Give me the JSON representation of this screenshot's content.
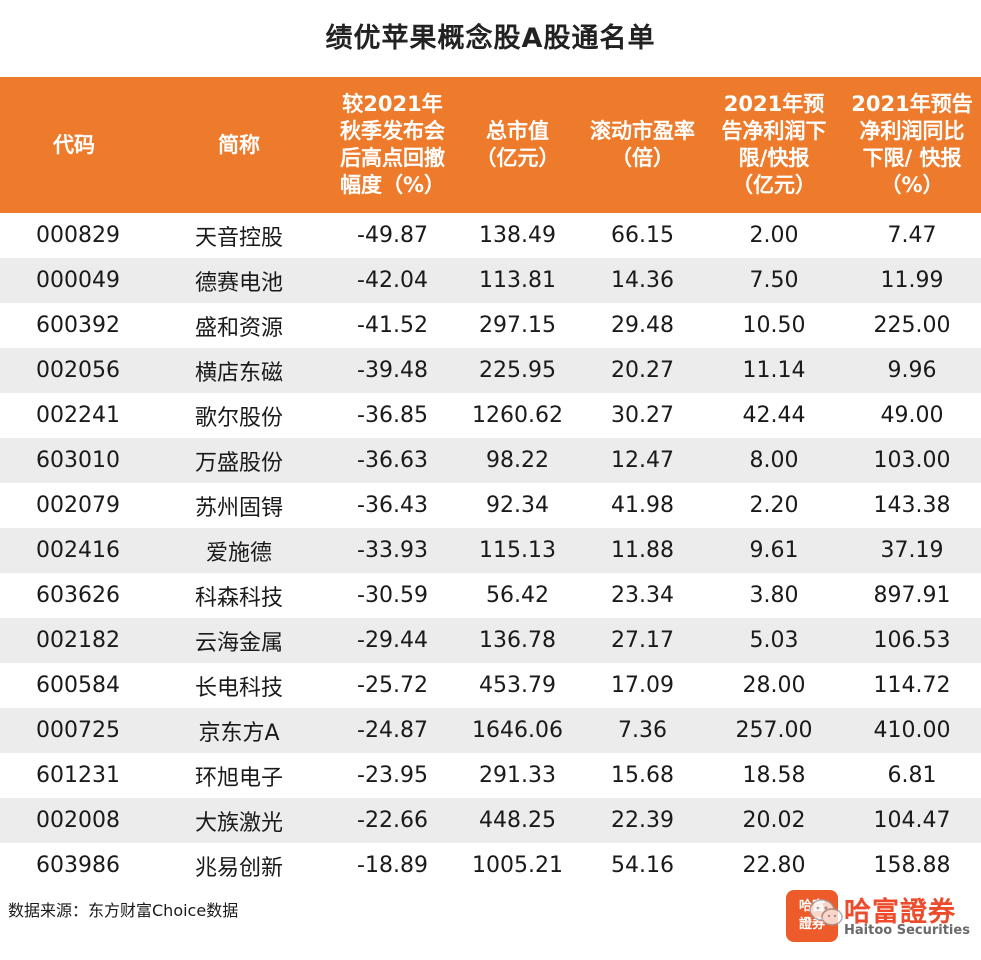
{
  "title": "绩优苹果概念股A股通名单",
  "headers": [
    "代码",
    "简称",
    "较2021年\n秋季发布会\n后高点回撤\n幅度（%）",
    "总市值\n（亿元）",
    "滚动市盈率\n（倍）",
    "2021年预\n告净利润下\n限/快报\n（亿元）",
    "2021年预告\n净利润同比\n下限/ 快报\n（%）"
  ],
  "rows": [
    [
      "000829",
      "天音控股",
      "-49.87",
      "138.49",
      "66.15",
      "2.00",
      "7.47"
    ],
    [
      "000049",
      "德赛电池",
      "-42.04",
      "113.81",
      "14.36",
      "7.50",
      "11.99"
    ],
    [
      "600392",
      "盛和资源",
      "-41.52",
      "297.15",
      "29.48",
      "10.50",
      "225.00"
    ],
    [
      "002056",
      "横店东磁",
      "-39.48",
      "225.95",
      "20.27",
      "11.14",
      "9.96"
    ],
    [
      "002241",
      "歌尔股份",
      "-36.85",
      "1260.62",
      "30.27",
      "42.44",
      "49.00"
    ],
    [
      "603010",
      "万盛股份",
      "-36.63",
      "98.22",
      "12.47",
      "8.00",
      "103.00"
    ],
    [
      "002079",
      "苏州固锝",
      "-36.43",
      "92.34",
      "41.98",
      "2.20",
      "143.38"
    ],
    [
      "002416",
      "爱施德",
      "-33.93",
      "115.13",
      "11.88",
      "9.61",
      "37.19"
    ],
    [
      "603626",
      "科森科技",
      "-30.59",
      "56.42",
      "23.34",
      "3.80",
      "897.91"
    ],
    [
      "002182",
      "云海金属",
      "-29.44",
      "136.78",
      "27.17",
      "5.03",
      "106.53"
    ],
    [
      "600584",
      "长电科技",
      "-25.72",
      "453.79",
      "17.09",
      "28.00",
      "114.72"
    ],
    [
      "000725",
      "京东方A",
      "-24.87",
      "1646.06",
      "7.36",
      "257.00",
      "410.00"
    ],
    [
      "601231",
      "环旭电子",
      "-23.95",
      "291.33",
      "15.68",
      "18.58",
      "6.81"
    ],
    [
      "002008",
      "大族激光",
      "-22.66",
      "448.25",
      "22.39",
      "20.02",
      "104.47"
    ],
    [
      "603986",
      "兆易创新",
      "-18.89",
      "1005.21",
      "54.16",
      "22.80",
      "158.88"
    ]
  ],
  "source": "数据来源：东方财富Choice数据",
  "logo": {
    "box_line1": "哈富",
    "box_line2": "證券",
    "name": "哈富證券",
    "en": "Haitoo Securities"
  },
  "colors": {
    "header_bg": "#ed7b2b",
    "header_text": "#ffffff",
    "stripe": "#ececec",
    "logo": "#ed4b2b"
  }
}
